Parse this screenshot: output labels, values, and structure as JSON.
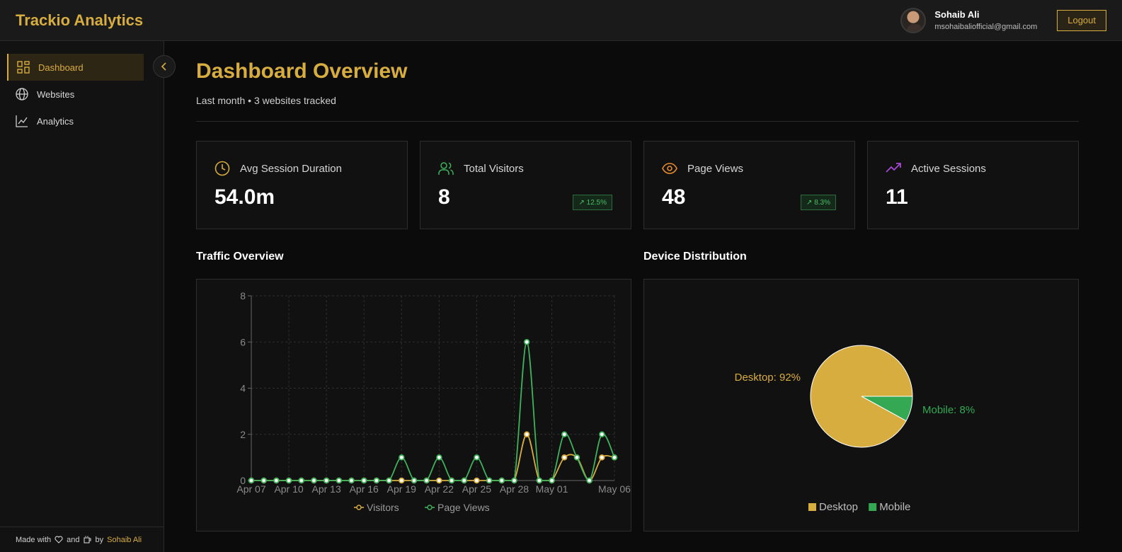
{
  "app": {
    "brand": "Trackio Analytics"
  },
  "user": {
    "name": "Sohaib Ali",
    "email": "msohaibaliofficial@gmail.com",
    "logout_label": "Logout"
  },
  "sidebar": {
    "items": [
      {
        "label": "Dashboard",
        "icon": "dashboard-icon",
        "active": true
      },
      {
        "label": "Websites",
        "icon": "globe-icon",
        "active": false
      },
      {
        "label": "Analytics",
        "icon": "line-chart-icon",
        "active": false
      }
    ],
    "footer": {
      "prefix": "Made with",
      "and": "and",
      "by": "by",
      "author": "Sohaib Ali"
    }
  },
  "header": {
    "title": "Dashboard Overview",
    "subtitle": "Last month • 3 websites tracked"
  },
  "stats": [
    {
      "label": "Avg Session Duration",
      "value": "54.0m",
      "icon": "clock-icon",
      "color": "#d8ad3f",
      "badge": ""
    },
    {
      "label": "Total Visitors",
      "value": "8",
      "icon": "users-icon",
      "color": "#3fb25b",
      "badge": "↗ 12.5%"
    },
    {
      "label": "Page Views",
      "value": "48",
      "icon": "eye-icon",
      "color": "#e88b2e",
      "badge": "↗ 8.3%"
    },
    {
      "label": "Active Sessions",
      "value": "11",
      "icon": "trending-up-icon",
      "color": "#a548d4",
      "badge": ""
    }
  ],
  "sections": {
    "traffic": "Traffic Overview",
    "devices": "Device Distribution"
  },
  "chart_data": [
    {
      "type": "line",
      "ylim": [
        0,
        8
      ],
      "yticks": [
        0,
        2,
        4,
        6,
        8
      ],
      "xtick_labels": [
        "Apr 07",
        "Apr 10",
        "Apr 13",
        "Apr 16",
        "Apr 19",
        "Apr 22",
        "Apr 25",
        "Apr 28",
        "May 01",
        "May 06"
      ],
      "xtick_index": [
        0,
        3,
        6,
        9,
        12,
        15,
        18,
        21,
        24,
        29
      ],
      "series": [
        {
          "name": "Visitors",
          "color": "#d8ad3f",
          "values": [
            0,
            0,
            0,
            0,
            0,
            0,
            0,
            0,
            0,
            0,
            0,
            0,
            0,
            0,
            0,
            0,
            0,
            0,
            0,
            0,
            0,
            0,
            2,
            0,
            0,
            1,
            1,
            0,
            1,
            1
          ]
        },
        {
          "name": "Page Views",
          "color": "#3fb25b",
          "values": [
            0,
            0,
            0,
            0,
            0,
            0,
            0,
            0,
            0,
            0,
            0,
            0,
            1,
            0,
            0,
            1,
            0,
            0,
            1,
            0,
            0,
            0,
            6,
            0,
            0,
            2,
            1,
            0,
            2,
            1
          ]
        }
      ],
      "grid": true,
      "legend": "bottom"
    },
    {
      "type": "pie",
      "slices": [
        {
          "label": "Desktop",
          "value": 92,
          "color": "#d8ad3f",
          "text": "Desktop: 92%"
        },
        {
          "label": "Mobile",
          "value": 8,
          "color": "#34a853",
          "text": "Mobile: 8%"
        }
      ],
      "legend": "bottom"
    }
  ]
}
